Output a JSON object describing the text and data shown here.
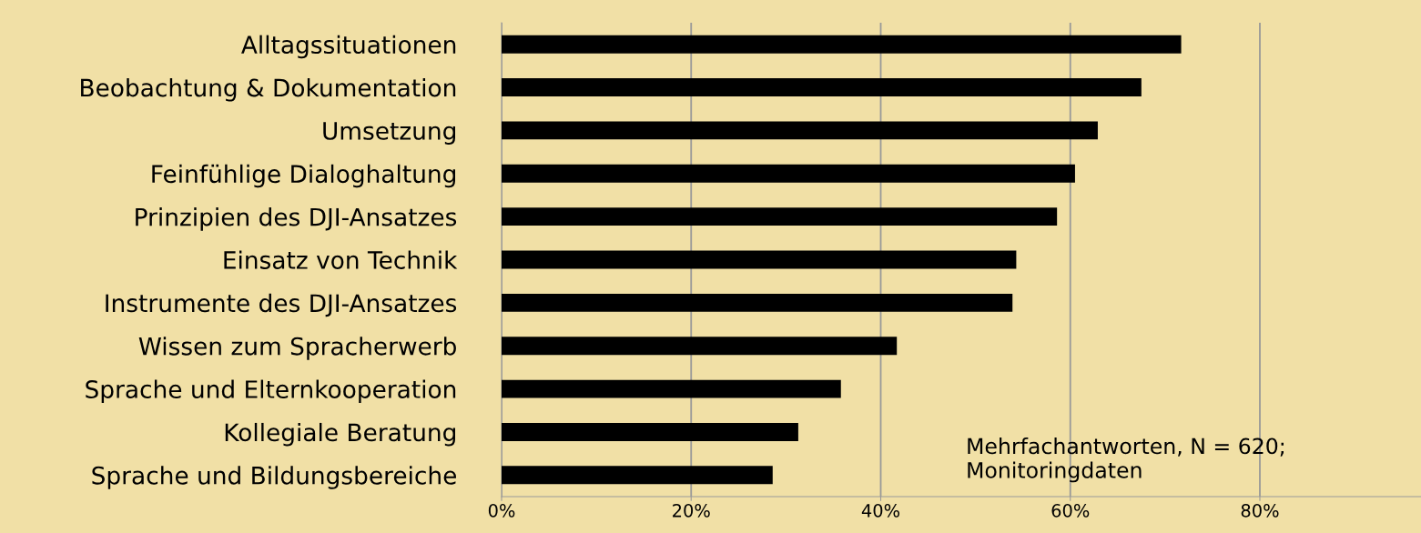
{
  "chart_data": {
    "type": "bar",
    "orientation": "horizontal",
    "categories": [
      "Alltagssituationen",
      "Beobachtung & Dokumentation",
      "Umsetzung",
      "Feinfühlige Dialoghaltung",
      "Prinzipien des DJI-Ansatzes",
      "Einsatz von Technik",
      "Instrumente des DJI-Ansatzes",
      "Wissen zum Spracherwerb",
      "Sprache und Elternkooperation",
      "Kollegiale Beratung",
      "Sprache und Bildungsbereiche"
    ],
    "values": [
      71.7,
      67.5,
      62.9,
      60.5,
      58.6,
      54.3,
      53.9,
      41.7,
      35.8,
      31.3,
      28.6
    ],
    "color": "#000000",
    "xlim": [
      0,
      97
    ],
    "xticks": [
      {
        "value": 0,
        "label": "0%"
      },
      {
        "value": 20,
        "label": "20%"
      },
      {
        "value": 40,
        "label": "40%"
      },
      {
        "value": 60,
        "label": "60%"
      },
      {
        "value": 80,
        "label": "80%"
      }
    ],
    "grid": "x",
    "annotations": [
      "Mehrfachantworten, N = 620;\nMonitoringdaten"
    ]
  }
}
